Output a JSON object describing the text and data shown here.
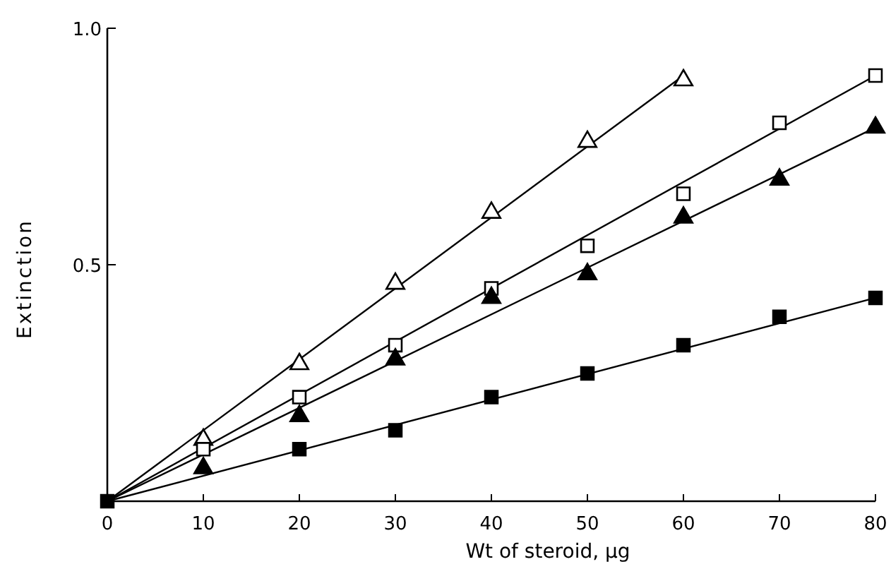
{
  "chart_data": {
    "type": "scatter",
    "xlabel": "Wt of steroid,  µg",
    "ylabel": "Extinction",
    "xlim": [
      0,
      80
    ],
    "ylim": [
      0,
      1.0
    ],
    "xticks": [
      0,
      10,
      20,
      30,
      40,
      50,
      60,
      70,
      80
    ],
    "yticks": [
      0.5,
      {
        "value": 1.0,
        "label": "1.0"
      }
    ],
    "grid": false,
    "series": [
      {
        "type": "scatter",
        "marker": "triangle",
        "color": "#ffffff",
        "x": [
          10,
          20,
          30,
          40,
          50,
          60
        ],
        "values": [
          0.13,
          0.29,
          0.46,
          0.61,
          0.76,
          0.89
        ]
      },
      {
        "type": "scatter",
        "marker": "square",
        "color": "#ffffff",
        "x": [
          10,
          20,
          30,
          40,
          50,
          60,
          70,
          80
        ],
        "values": [
          0.11,
          0.22,
          0.33,
          0.45,
          0.54,
          0.65,
          0.8,
          0.9
        ]
      },
      {
        "type": "scatter",
        "marker": "triangle",
        "color": "#000000",
        "x": [
          10,
          20,
          30,
          40,
          50,
          60,
          70,
          80
        ],
        "values": [
          0.07,
          0.18,
          0.3,
          0.43,
          0.48,
          0.6,
          0.68,
          0.79
        ]
      },
      {
        "type": "scatter",
        "marker": "square",
        "color": "#000000",
        "x": [
          0,
          20,
          30,
          40,
          50,
          60,
          70,
          80
        ],
        "values": [
          0,
          0.11,
          0.15,
          0.22,
          0.27,
          0.33,
          0.39,
          0.43
        ]
      },
      {
        "type": "line",
        "marker": "none",
        "color": "#000000",
        "x": [
          0,
          60
        ],
        "values": [
          0,
          0.9
        ]
      },
      {
        "type": "line",
        "marker": "none",
        "color": "#000000",
        "x": [
          0,
          80
        ],
        "values": [
          0,
          0.9
        ]
      },
      {
        "type": "line",
        "marker": "none",
        "color": "#000000",
        "x": [
          0,
          80
        ],
        "values": [
          0,
          0.79
        ]
      },
      {
        "type": "line",
        "marker": "none",
        "color": "#000000",
        "x": [
          0,
          80
        ],
        "values": [
          0,
          0.43
        ]
      }
    ]
  }
}
